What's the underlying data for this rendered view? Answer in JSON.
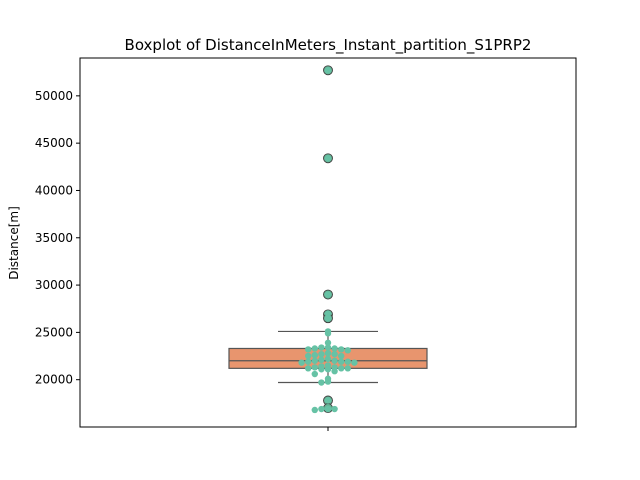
{
  "chart_data": {
    "type": "box",
    "title": "Boxplot of DistanceInMeters_Instant_partition_S1PRP2",
    "ylabel": "Distance[m]",
    "xlabel": "",
    "ylim": [
      15000,
      54000
    ],
    "yticks": [
      20000,
      25000,
      30000,
      35000,
      40000,
      45000,
      50000
    ],
    "ytick_labels": [
      "20000",
      "25000",
      "30000",
      "35000",
      "40000",
      "45000",
      "50000"
    ],
    "grid": false,
    "box": {
      "q1": 21200,
      "median": 22000,
      "q3": 23300,
      "whisker_low": 19700,
      "whisker_high": 25100,
      "fill_color": "#e8956e",
      "line_color": "#555555"
    },
    "outliers": [
      52700,
      43400,
      29000,
      26900,
      26500,
      17800,
      17000
    ],
    "outlier_color": "#66b496",
    "swarm_points": [
      52700,
      43400,
      29000,
      27000,
      26500,
      25100,
      24900,
      23900,
      23400,
      23400,
      23300,
      23300,
      23200,
      23200,
      23100,
      22800,
      22700,
      22700,
      22600,
      22500,
      22500,
      22200,
      22100,
      22000,
      22000,
      21900,
      21900,
      21900,
      21800,
      21800,
      21500,
      21400,
      21300,
      21300,
      21200,
      21200,
      21200,
      21100,
      21100,
      20900,
      20600,
      20100,
      19800,
      19700,
      17800,
      16900,
      16900,
      16900,
      16800
    ],
    "swarm_color": "#66c2a5"
  }
}
